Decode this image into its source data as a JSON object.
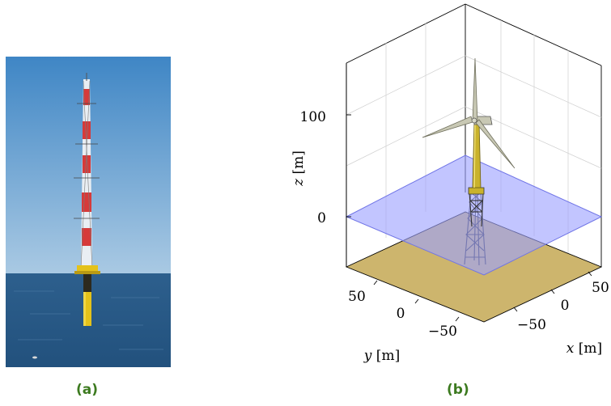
{
  "figure": {
    "panel_a": {
      "caption": "(a)",
      "subject": "offshore-met-mast-photo",
      "colors": {
        "sky_top": "#3f86c5",
        "sky_bottom": "#a9c9e3",
        "sea": "#2a5c8a",
        "mast_red": "#d63a3a",
        "foundation_yellow": "#e4c21a"
      }
    },
    "panel_b": {
      "caption": "(b)",
      "axes": {
        "x": {
          "label_var": "x",
          "label_unit": " [m]",
          "ticks": [
            "−50",
            "0",
            "50"
          ]
        },
        "y": {
          "label_var": "y",
          "label_unit": " [m]",
          "ticks": [
            "50",
            "0",
            "−50"
          ]
        },
        "z": {
          "label_var": "z",
          "label_unit": " [m]",
          "ticks": [
            "0",
            "100"
          ]
        }
      },
      "colors": {
        "water_plane": "#9da2ff",
        "seabed": "#cdb56d",
        "tower": "#c9b22c",
        "blade": "#c8c8b4",
        "jacket": "#333333"
      }
    }
  }
}
